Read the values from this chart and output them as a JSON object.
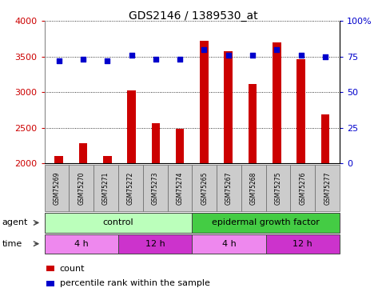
{
  "title": "GDS2146 / 1389530_at",
  "samples": [
    "GSM75269",
    "GSM75270",
    "GSM75271",
    "GSM75272",
    "GSM75273",
    "GSM75274",
    "GSM75265",
    "GSM75267",
    "GSM75268",
    "GSM75275",
    "GSM75276",
    "GSM75277"
  ],
  "counts": [
    2100,
    2280,
    2100,
    3030,
    2570,
    2490,
    3720,
    3580,
    3120,
    3700,
    3460,
    2690
  ],
  "percentile_ranks": [
    72,
    73,
    72,
    76,
    73,
    73,
    80,
    76,
    76,
    80,
    76,
    75
  ],
  "ylim_left": [
    2000,
    4000
  ],
  "ylim_right": [
    0,
    100
  ],
  "yticks_left": [
    2000,
    2500,
    3000,
    3500,
    4000
  ],
  "yticks_right": [
    0,
    25,
    50,
    75,
    100
  ],
  "bar_color": "#cc0000",
  "dot_color": "#0000cc",
  "agent_groups": [
    {
      "label": "control",
      "start": 0,
      "end": 6,
      "color": "#bbffbb"
    },
    {
      "label": "epidermal growth factor",
      "start": 6,
      "end": 12,
      "color": "#44cc44"
    }
  ],
  "time_groups": [
    {
      "label": "4 h",
      "start": 0,
      "end": 3,
      "color": "#ee88ee"
    },
    {
      "label": "12 h",
      "start": 3,
      "end": 6,
      "color": "#cc33cc"
    },
    {
      "label": "4 h",
      "start": 6,
      "end": 9,
      "color": "#ee88ee"
    },
    {
      "label": "12 h",
      "start": 9,
      "end": 12,
      "color": "#cc33cc"
    }
  ],
  "legend_items": [
    {
      "label": "count",
      "color": "#cc0000"
    },
    {
      "label": "percentile rank within the sample",
      "color": "#0000cc"
    }
  ],
  "sample_box_color": "#cccccc",
  "sample_box_edge": "#666666"
}
